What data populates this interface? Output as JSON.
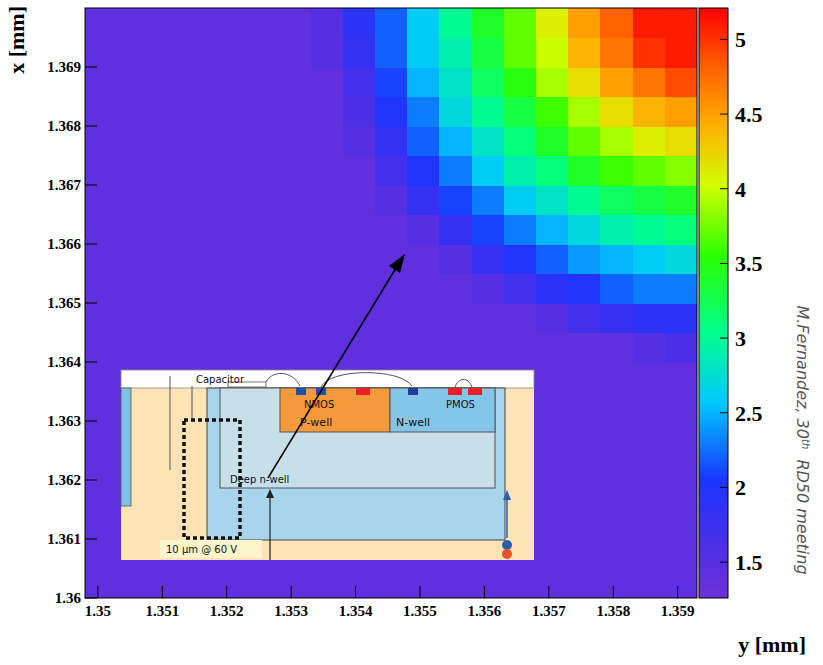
{
  "chart_data": {
    "type": "heatmap",
    "x_label": "y [mm]",
    "y_label": "x [mm]",
    "xlim": [
      1.3498,
      1.3593
    ],
    "ylim": [
      1.36,
      1.37
    ],
    "xticks": [
      1.35,
      1.351,
      1.352,
      1.353,
      1.354,
      1.355,
      1.356,
      1.357,
      1.358,
      1.359
    ],
    "yticks": [
      1.36,
      1.361,
      1.362,
      1.363,
      1.364,
      1.365,
      1.366,
      1.367,
      1.368,
      1.369
    ],
    "x_bins": [
      1.3498,
      1.3503,
      1.3508,
      1.3513,
      1.3518,
      1.3523,
      1.3528,
      1.3533,
      1.3538,
      1.3543,
      1.3548,
      1.3553,
      1.3558,
      1.3563,
      1.3568,
      1.3573,
      1.3578,
      1.3583,
      1.3588,
      1.3593
    ],
    "y_bins": [
      1.36,
      1.3605,
      1.361,
      1.3615,
      1.362,
      1.3625,
      1.363,
      1.3635,
      1.364,
      1.3645,
      1.365,
      1.3655,
      1.366,
      1.3665,
      1.367,
      1.3675,
      1.368,
      1.3685,
      1.369,
      1.3695,
      1.37
    ],
    "cells": [
      [
        1.4,
        1.4,
        1.4,
        1.4,
        1.4,
        1.4,
        1.4,
        1.4,
        1.4,
        1.4,
        1.4,
        1.4,
        1.4,
        1.4,
        1.4,
        1.4,
        1.4,
        1.4,
        1.4
      ],
      [
        1.4,
        1.4,
        1.4,
        1.4,
        1.4,
        1.4,
        1.4,
        1.4,
        1.4,
        1.4,
        1.4,
        1.4,
        1.4,
        1.4,
        1.4,
        1.4,
        1.4,
        1.4,
        1.4
      ],
      [
        1.4,
        1.4,
        1.4,
        1.4,
        1.4,
        1.4,
        1.4,
        1.4,
        1.4,
        1.4,
        1.4,
        1.4,
        1.4,
        1.4,
        1.4,
        1.4,
        1.4,
        1.4,
        1.4
      ],
      [
        1.4,
        1.4,
        1.4,
        1.4,
        1.4,
        1.4,
        1.4,
        1.4,
        1.4,
        1.4,
        1.4,
        1.4,
        1.4,
        1.4,
        1.4,
        1.4,
        1.4,
        1.4,
        1.4
      ],
      [
        1.4,
        1.4,
        1.4,
        1.4,
        1.4,
        1.4,
        1.4,
        1.4,
        1.4,
        1.4,
        1.4,
        1.4,
        1.4,
        1.4,
        1.4,
        1.4,
        1.4,
        1.4,
        1.4
      ],
      [
        1.4,
        1.4,
        1.4,
        1.4,
        1.4,
        1.4,
        1.4,
        1.4,
        1.4,
        1.4,
        1.4,
        1.4,
        1.4,
        1.4,
        1.4,
        1.4,
        1.4,
        1.4,
        1.4
      ],
      [
        1.4,
        1.4,
        1.4,
        1.4,
        1.4,
        1.4,
        1.4,
        1.4,
        1.4,
        1.4,
        1.4,
        1.4,
        1.4,
        1.4,
        1.4,
        1.4,
        1.4,
        1.4,
        1.4
      ],
      [
        1.4,
        1.4,
        1.4,
        1.4,
        1.4,
        1.4,
        1.4,
        1.4,
        1.4,
        1.4,
        1.4,
        1.4,
        1.4,
        1.4,
        1.4,
        1.4,
        1.4,
        1.4,
        1.4
      ],
      [
        1.4,
        1.4,
        1.4,
        1.4,
        1.4,
        1.4,
        1.4,
        1.4,
        1.4,
        1.4,
        1.4,
        1.4,
        1.4,
        1.4,
        1.4,
        1.4,
        1.4,
        1.5,
        1.6
      ],
      [
        1.4,
        1.4,
        1.4,
        1.4,
        1.4,
        1.4,
        1.4,
        1.4,
        1.4,
        1.4,
        1.4,
        1.4,
        1.4,
        1.4,
        1.5,
        1.7,
        1.8,
        1.9,
        1.9
      ],
      [
        1.4,
        1.4,
        1.4,
        1.4,
        1.4,
        1.4,
        1.4,
        1.4,
        1.4,
        1.4,
        1.4,
        1.4,
        1.5,
        1.7,
        1.9,
        2.0,
        2.2,
        2.3,
        2.3
      ],
      [
        1.4,
        1.4,
        1.4,
        1.4,
        1.4,
        1.4,
        1.4,
        1.4,
        1.4,
        1.4,
        1.4,
        1.5,
        1.8,
        2.0,
        2.2,
        2.4,
        2.5,
        2.6,
        2.7
      ],
      [
        1.4,
        1.4,
        1.4,
        1.4,
        1.4,
        1.4,
        1.4,
        1.4,
        1.4,
        1.4,
        1.5,
        1.8,
        2.1,
        2.3,
        2.5,
        2.7,
        2.9,
        3.0,
        3.1
      ],
      [
        1.4,
        1.4,
        1.4,
        1.4,
        1.4,
        1.4,
        1.4,
        1.4,
        1.4,
        1.5,
        1.8,
        2.1,
        2.3,
        2.6,
        2.8,
        3.0,
        3.2,
        3.3,
        3.4
      ],
      [
        1.4,
        1.4,
        1.4,
        1.4,
        1.4,
        1.4,
        1.4,
        1.4,
        1.4,
        1.7,
        2.0,
        2.3,
        2.6,
        2.9,
        3.1,
        3.4,
        3.6,
        3.7,
        3.8
      ],
      [
        1.4,
        1.4,
        1.4,
        1.4,
        1.4,
        1.4,
        1.4,
        1.4,
        1.5,
        1.8,
        2.2,
        2.5,
        2.8,
        3.1,
        3.4,
        3.7,
        3.9,
        4.1,
        4.2
      ],
      [
        1.4,
        1.4,
        1.4,
        1.4,
        1.4,
        1.4,
        1.4,
        1.4,
        1.6,
        2.0,
        2.3,
        2.7,
        3.0,
        3.3,
        3.6,
        3.9,
        4.2,
        4.4,
        4.5
      ],
      [
        1.4,
        1.4,
        1.4,
        1.4,
        1.4,
        1.4,
        1.4,
        1.4,
        1.7,
        2.1,
        2.5,
        2.8,
        3.2,
        3.5,
        3.9,
        4.2,
        4.5,
        4.7,
        4.9
      ],
      [
        1.4,
        1.4,
        1.4,
        1.4,
        1.4,
        1.4,
        1.4,
        1.5,
        1.8,
        2.2,
        2.6,
        2.9,
        3.3,
        3.7,
        4.0,
        4.4,
        4.7,
        5.0,
        5.1
      ],
      [
        1.4,
        1.4,
        1.4,
        1.4,
        1.4,
        1.4,
        1.4,
        1.5,
        1.9,
        2.2,
        2.6,
        3.0,
        3.4,
        3.7,
        4.1,
        4.5,
        4.8,
        5.1,
        5.1
      ]
    ],
    "colorbar": {
      "range": [
        1.26,
        5.21
      ],
      "ticks": [
        1.5,
        2,
        2.5,
        3,
        3.5,
        4,
        4.5,
        5
      ]
    },
    "inset": {
      "capacitor": "Capacitor",
      "nmos": "NMOS",
      "pmos": "PMOS",
      "p_well": "P-well",
      "n_well": "N-well",
      "deep_n_well": "Deep n-well",
      "depletion": "10 µm @ 60 V"
    },
    "credit": {
      "before": "M.Fernandez, 30",
      "sup": "th",
      "after": "  RD50 meeting"
    }
  }
}
